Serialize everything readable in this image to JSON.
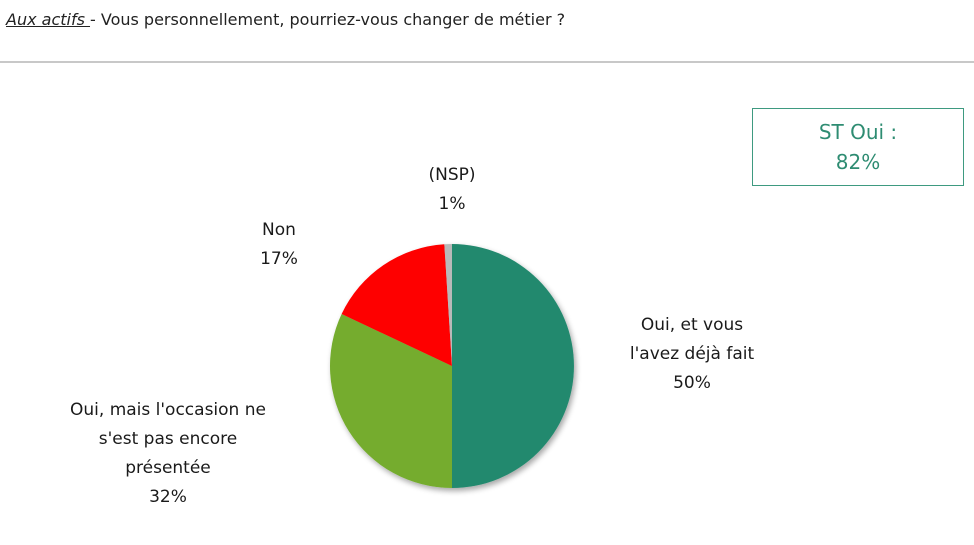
{
  "header": {
    "population": "Aux actifs ",
    "question": " - Vous personnellement, pourriez-vous changer de métier ?"
  },
  "summary_box": {
    "line1": "ST Oui :",
    "line2": "82%"
  },
  "chart_data": {
    "type": "pie",
    "slices": [
      {
        "label_lines": [
          "Oui, et vous",
          "l'avez déjà fait"
        ],
        "value": 50,
        "display": "50%",
        "color": "#23896e"
      },
      {
        "label_lines": [
          "Oui, mais l'occasion ne",
          "s'est pas encore",
          "présentée"
        ],
        "value": 32,
        "display": "32%",
        "color": "#74ac2f"
      },
      {
        "label_lines": [
          "Non"
        ],
        "value": 17,
        "display": "17%",
        "color": "#fe0000"
      },
      {
        "label_lines": [
          "(NSP)"
        ],
        "value": 1,
        "display": "1%",
        "color": "#b9b9b9"
      }
    ]
  }
}
